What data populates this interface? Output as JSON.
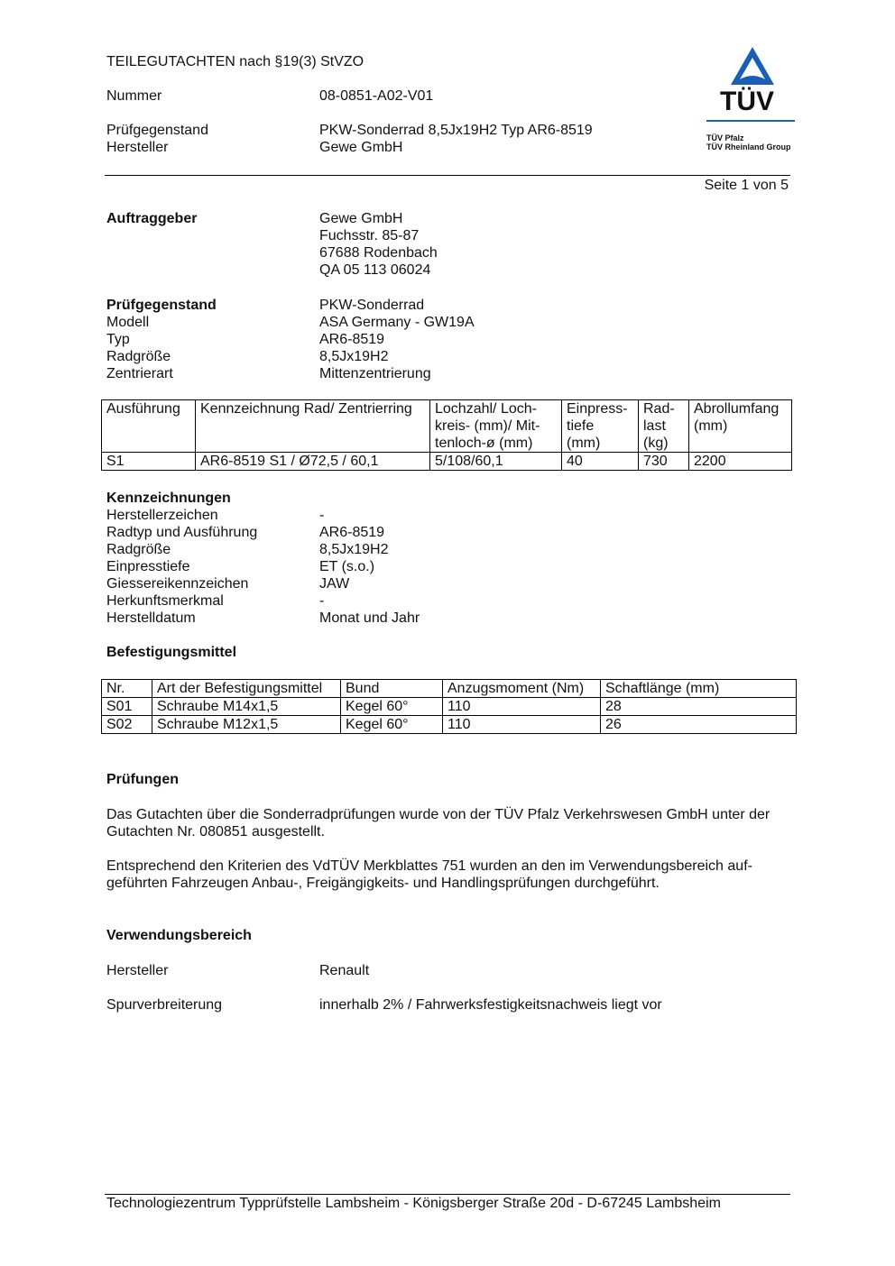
{
  "header": {
    "title": "TEILEGUTACHTEN nach §19(3) StVZO",
    "rows": [
      {
        "label": "Nummer",
        "value": "08-0851-A02-V01"
      },
      {
        "label": "Prüfgegenstand",
        "value": "PKW-Sonderrad 8,5Jx19H2 Typ AR6-8519"
      },
      {
        "label": "Hersteller",
        "value": "Gewe GmbH"
      }
    ],
    "page": "Seite 1 von 5"
  },
  "logo": {
    "text": "TÜV",
    "line1": "TÜV Pfalz",
    "line2": "TÜV Rheinland Group",
    "color": "#1a5fb4"
  },
  "auftraggeber": {
    "label": "Auftraggeber",
    "lines": [
      "Gewe GmbH",
      "Fuchsstr. 85-87",
      "67688 Rodenbach",
      "QA 05 113 06024"
    ]
  },
  "pruefgegenstand": {
    "rows": [
      {
        "label": "Prüfgegenstand",
        "value": "PKW-Sonderrad"
      },
      {
        "label": "Modell",
        "value": "ASA Germany - GW19A"
      },
      {
        "label": "Typ",
        "value": "AR6-8519"
      },
      {
        "label": "Radgröße",
        "value": "8,5Jx19H2"
      },
      {
        "label": "Zentrierart",
        "value": "Mittenzentrierung"
      }
    ]
  },
  "table1": {
    "headers": [
      "Ausführung",
      "Kennzeichnung Rad/ Zentrierring",
      "Lochzahl/ Loch-\nkreis- (mm)/ Mit-\ntenloch-ø (mm)",
      "Einpress-\ntiefe\n(mm)",
      "Rad-\nlast\n(kg)",
      "Abrollumfang\n(mm)"
    ],
    "rows": [
      [
        "S1",
        "AR6-8519 S1 / Ø72,5 / 60,1",
        "5/108/60,1",
        "40",
        "730",
        "2200"
      ]
    ]
  },
  "kennzeichnungen": {
    "title": "Kennzeichnungen",
    "rows": [
      {
        "label": "Herstellerzeichen",
        "value": "-"
      },
      {
        "label": "Radtyp und Ausführung",
        "value": "AR6-8519"
      },
      {
        "label": "Radgröße",
        "value": "8,5Jx19H2"
      },
      {
        "label": "Einpresstiefe",
        "value": "ET (s.o.)"
      },
      {
        "label": "Giessereikennzeichen",
        "value": "JAW"
      },
      {
        "label": "Herkunftsmerkmal",
        "value": "-"
      },
      {
        "label": "Herstelldatum",
        "value": "Monat und Jahr"
      }
    ]
  },
  "befestigung": {
    "title": "Befestigungsmittel",
    "headers": [
      "Nr.",
      "Art der Befestigungsmittel",
      "Bund",
      "Anzugsmoment (Nm)",
      "Schaftlänge (mm)"
    ],
    "rows": [
      [
        "S01",
        "Schraube M14x1,5",
        "Kegel 60°",
        "110",
        "28"
      ],
      [
        "S02",
        "Schraube M12x1,5",
        "Kegel 60°",
        "110",
        "26"
      ]
    ]
  },
  "pruefungen": {
    "title": "Prüfungen",
    "p1": "Das Gutachten über die Sonderradprüfungen wurde von der TÜV Pfalz Verkehrswesen GmbH unter der Gutachten Nr. 080851 ausgestellt.",
    "p2": "Entsprechend den Kriterien des VdTÜV Merkblattes 751 wurden an den im Verwendungsbereich auf-geführten Fahrzeugen Anbau-, Freigängigkeits- und Handlingsprüfungen durchgeführt."
  },
  "verwendung": {
    "title": "Verwendungsbereich",
    "rows": [
      {
        "label": "Hersteller",
        "value": "Renault"
      },
      {
        "label": "Spurverbreiterung",
        "value": "innerhalb 2% / Fahrwerksfestigkeitsnachweis liegt vor"
      }
    ]
  },
  "footer": "Technologiezentrum Typprüfstelle Lambsheim - Königsberger Straße 20d - D-67245 Lambsheim"
}
